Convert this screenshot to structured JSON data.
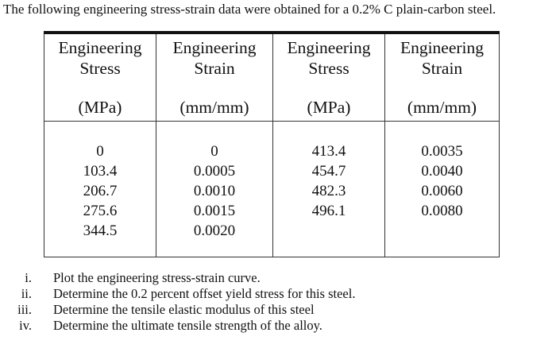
{
  "intro": "The following engineering stress-strain data were obtained for a 0.2% C plain-carbon steel.",
  "table": {
    "headers": [
      {
        "line1": "Engineering",
        "line2": "Stress",
        "unit": "(MPa)"
      },
      {
        "line1": "Engineering",
        "line2": "Strain",
        "unit": "(mm/mm)"
      },
      {
        "line1": "Engineering",
        "line2": "Stress",
        "unit": "(MPa)"
      },
      {
        "line1": "Engineering",
        "line2": "Strain",
        "unit": "(mm/mm)"
      }
    ],
    "columns": [
      [
        "0",
        "103.4",
        "206.7",
        "275.6",
        "344.5"
      ],
      [
        "0",
        "0.0005",
        "0.0010",
        "0.0015",
        "0.0020"
      ],
      [
        "413.4",
        "454.7",
        "482.3",
        "496.1"
      ],
      [
        "0.0035",
        "0.0040",
        "0.0060",
        "0.0080"
      ]
    ]
  },
  "questions": [
    {
      "num": "i.",
      "text": "Plot the engineering stress-strain curve."
    },
    {
      "num": "ii.",
      "text": "Determine the 0.2 percent offset yield stress for this steel."
    },
    {
      "num": "iii.",
      "text": "Determine the tensile elastic modulus of this steel"
    },
    {
      "num": "iv.",
      "text": "Determine the ultimate tensile strength of the alloy."
    }
  ]
}
